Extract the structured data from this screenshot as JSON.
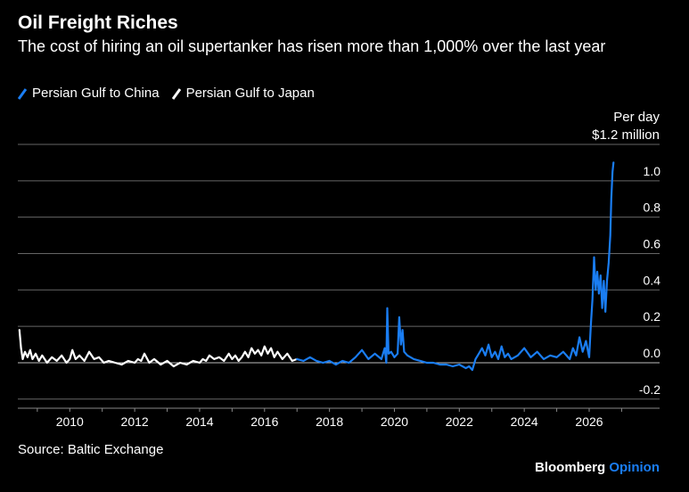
{
  "header": {
    "title": "Oil Freight Riches",
    "subtitle": "The cost of hiring an oil supertanker has risen more than 1,000% over the last year"
  },
  "unit_label": {
    "line1": "Per day",
    "line2": "$1.2 million"
  },
  "footer": {
    "source": "Source: Baltic Exchange",
    "brand_1": "Bloomberg",
    "brand_2": "Opinion"
  },
  "colors": {
    "background": "#000000",
    "china": "#1a7df2",
    "japan": "#ffffff",
    "grid": "#666666",
    "brand_accent": "#1a7df2"
  },
  "chart_data": {
    "type": "line",
    "title": "Oil Freight Riches",
    "subtitle": "The cost of hiring an oil supertanker has risen more than 1,000% over the last year",
    "xlabel": "",
    "ylabel": "Per day",
    "y_axis_side": "right",
    "xlim": [
      2008.4,
      2027.4
    ],
    "ylim": [
      -0.25,
      1.2
    ],
    "x_ticks": [
      2010,
      2012,
      2014,
      2016,
      2018,
      2020,
      2022,
      2024,
      2026
    ],
    "x_tick_labels": [
      "2010",
      "2012",
      "2014",
      "2016",
      "2018",
      "2020",
      "2022",
      "2024",
      "2026"
    ],
    "y_ticks": [
      -0.2,
      0.0,
      0.2,
      0.4,
      0.6,
      0.8,
      1.0
    ],
    "y_tick_labels": [
      "-0.2",
      "0.0",
      "0.2",
      "0.4",
      "0.6",
      "0.8",
      "1.0"
    ],
    "top_label": "$1.2 million",
    "grid": "horizontal",
    "legend_position": "top-left",
    "series": [
      {
        "name": "Persian Gulf to Japan",
        "color": "#ffffff",
        "x": [
          2008.45,
          2008.5,
          2008.55,
          2008.62,
          2008.7,
          2008.78,
          2008.85,
          2008.95,
          2009.05,
          2009.15,
          2009.3,
          2009.45,
          2009.6,
          2009.75,
          2009.9,
          2010.0,
          2010.08,
          2010.18,
          2010.3,
          2010.45,
          2010.6,
          2010.75,
          2010.9,
          2011.05,
          2011.2,
          2011.4,
          2011.6,
          2011.8,
          2012.0,
          2012.1,
          2012.2,
          2012.3,
          2012.45,
          2012.6,
          2012.8,
          2013.0,
          2013.2,
          2013.4,
          2013.6,
          2013.8,
          2014.0,
          2014.1,
          2014.2,
          2014.3,
          2014.45,
          2014.6,
          2014.75,
          2014.9,
          2015.0,
          2015.1,
          2015.2,
          2015.3,
          2015.4,
          2015.5,
          2015.6,
          2015.7,
          2015.8,
          2015.9,
          2016.0,
          2016.1,
          2016.2,
          2016.3,
          2016.4,
          2016.55,
          2016.7,
          2016.85,
          2017.0
        ],
        "values": [
          0.18,
          0.08,
          0.02,
          0.06,
          0.03,
          0.07,
          0.02,
          0.05,
          0.01,
          0.04,
          0.0,
          0.03,
          0.01,
          0.04,
          0.0,
          0.02,
          0.07,
          0.02,
          0.04,
          0.01,
          0.06,
          0.02,
          0.03,
          0.0,
          0.01,
          0.0,
          -0.01,
          0.01,
          0.0,
          0.02,
          0.01,
          0.05,
          0.0,
          0.02,
          -0.01,
          0.01,
          -0.02,
          0.0,
          -0.01,
          0.01,
          0.0,
          0.02,
          0.01,
          0.04,
          0.02,
          0.03,
          0.01,
          0.05,
          0.02,
          0.04,
          0.01,
          0.03,
          0.06,
          0.03,
          0.08,
          0.05,
          0.07,
          0.04,
          0.09,
          0.05,
          0.08,
          0.03,
          0.06,
          0.02,
          0.05,
          0.01,
          0.02
        ]
      },
      {
        "name": "Persian Gulf to China",
        "color": "#1a7df2",
        "x": [
          2017.0,
          2017.2,
          2017.4,
          2017.6,
          2017.8,
          2018.0,
          2018.2,
          2018.4,
          2018.6,
          2018.8,
          2019.0,
          2019.2,
          2019.4,
          2019.6,
          2019.7,
          2019.75,
          2019.78,
          2019.82,
          2019.9,
          2020.0,
          2020.1,
          2020.15,
          2020.2,
          2020.25,
          2020.3,
          2020.4,
          2020.6,
          2020.8,
          2021.0,
          2021.2,
          2021.4,
          2021.6,
          2021.8,
          2022.0,
          2022.2,
          2022.3,
          2022.4,
          2022.5,
          2022.6,
          2022.7,
          2022.8,
          2022.9,
          2023.0,
          2023.1,
          2023.2,
          2023.3,
          2023.4,
          2023.5,
          2023.6,
          2023.8,
          2024.0,
          2024.2,
          2024.4,
          2024.6,
          2024.8,
          2025.0,
          2025.2,
          2025.4,
          2025.5,
          2025.6,
          2025.7,
          2025.8,
          2025.9,
          2026.0,
          2026.05,
          2026.1,
          2026.15,
          2026.2,
          2026.25,
          2026.3,
          2026.35,
          2026.4,
          2026.45,
          2026.5,
          2026.55,
          2026.6,
          2026.65,
          2026.68,
          2026.72,
          2026.75
        ],
        "values": [
          0.02,
          0.01,
          0.03,
          0.01,
          0.0,
          0.01,
          -0.01,
          0.01,
          0.0,
          0.03,
          0.07,
          0.02,
          0.05,
          0.02,
          0.08,
          0.0,
          0.3,
          0.05,
          0.06,
          0.03,
          0.05,
          0.25,
          0.1,
          0.18,
          0.06,
          0.04,
          0.02,
          0.01,
          0.0,
          0.0,
          -0.01,
          -0.01,
          -0.02,
          -0.01,
          -0.03,
          -0.02,
          -0.04,
          0.02,
          0.05,
          0.08,
          0.04,
          0.1,
          0.03,
          0.06,
          0.02,
          0.09,
          0.03,
          0.05,
          0.02,
          0.04,
          0.08,
          0.03,
          0.06,
          0.02,
          0.04,
          0.03,
          0.06,
          0.02,
          0.08,
          0.04,
          0.14,
          0.06,
          0.12,
          0.03,
          0.2,
          0.35,
          0.58,
          0.4,
          0.5,
          0.38,
          0.48,
          0.3,
          0.45,
          0.28,
          0.45,
          0.55,
          0.7,
          0.9,
          1.05,
          1.1
        ]
      }
    ]
  }
}
